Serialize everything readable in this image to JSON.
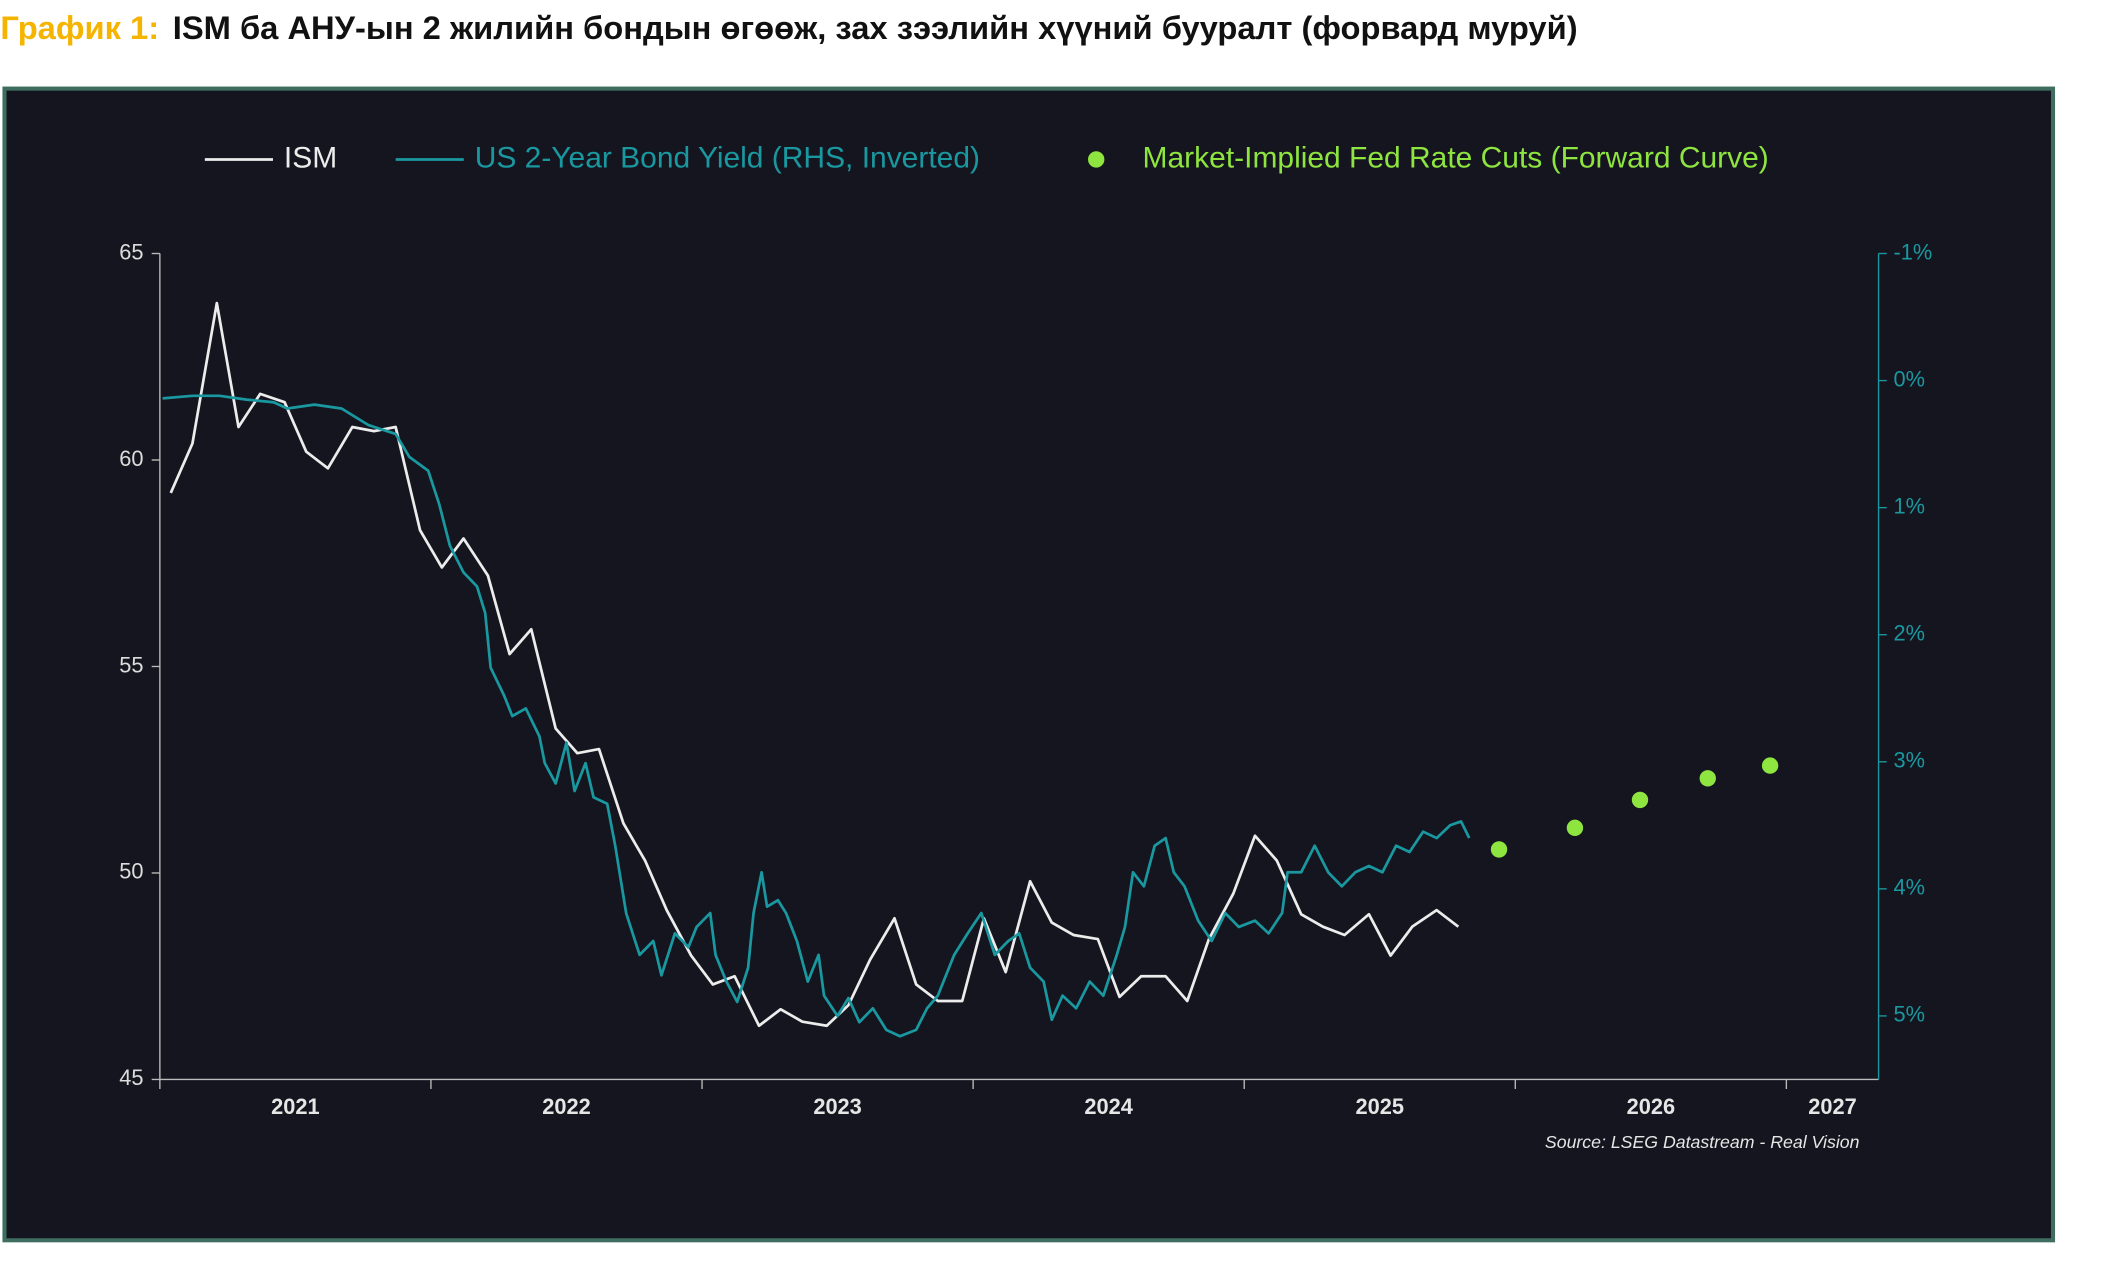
{
  "chart_data": {
    "type": "line",
    "figure_label": "График 1:",
    "title": "ISM ба АНУ-ын 2 жилийн бондын өгөөж, зах зээлийн хүүний бууралт (форвард муруй)",
    "source": "Source: LSEG Datastream - Real Vision",
    "xlim": [
      2021,
      2027.34
    ],
    "xticks": [
      2021,
      2022,
      2023,
      2024,
      2025,
      2026,
      2027
    ],
    "ylim": [
      45,
      65
    ],
    "yticks": [
      45,
      50,
      55,
      60,
      65
    ],
    "y2lim": [
      -1,
      5.5
    ],
    "y2_inverted": true,
    "y2ticks": [
      {
        "value": -1,
        "label": "-1%"
      },
      {
        "value": 0,
        "label": "0%"
      },
      {
        "value": 1,
        "label": "1%"
      },
      {
        "value": 2,
        "label": "2%"
      },
      {
        "value": 3,
        "label": "3%"
      },
      {
        "value": 4,
        "label": "4%"
      },
      {
        "value": 5,
        "label": "5%"
      }
    ],
    "series": [
      {
        "name": "ISM",
        "color": "#ececec",
        "axis": "y",
        "x": [
          2021.04,
          2021.12,
          2021.21,
          2021.29,
          2021.37,
          2021.46,
          2021.54,
          2021.62,
          2021.71,
          2021.79,
          2021.87,
          2021.96,
          2022.04,
          2022.12,
          2022.21,
          2022.29,
          2022.37,
          2022.46,
          2022.54,
          2022.62,
          2022.71,
          2022.79,
          2022.87,
          2022.96,
          2023.04,
          2023.12,
          2023.21,
          2023.29,
          2023.37,
          2023.46,
          2023.54,
          2023.62,
          2023.71,
          2023.79,
          2023.87,
          2023.96,
          2024.04,
          2024.12,
          2024.21,
          2024.29,
          2024.37,
          2024.46,
          2024.54,
          2024.62,
          2024.71,
          2024.79,
          2024.87,
          2024.96,
          2025.04,
          2025.12,
          2025.21,
          2025.29,
          2025.37,
          2025.46,
          2025.54,
          2025.62,
          2025.71,
          2025.79
        ],
        "values": [
          59.2,
          60.4,
          63.8,
          60.8,
          61.6,
          61.4,
          60.2,
          59.8,
          60.8,
          60.7,
          60.8,
          58.3,
          57.4,
          58.1,
          57.2,
          55.3,
          55.9,
          53.5,
          52.9,
          53.0,
          51.2,
          50.3,
          49.1,
          48.0,
          47.3,
          47.5,
          46.3,
          46.7,
          46.4,
          46.3,
          46.8,
          47.9,
          48.9,
          47.3,
          46.9,
          46.9,
          48.9,
          47.6,
          49.8,
          48.8,
          48.5,
          48.4,
          47.0,
          47.5,
          47.5,
          46.9,
          48.4,
          49.5,
          50.9,
          50.3,
          49.0,
          48.7,
          48.5,
          49.0,
          48.0,
          48.7,
          49.1,
          48.7
        ]
      },
      {
        "name": "US 2-Year Bond Yield (RHS, Inverted)",
        "color": "#1a98a0",
        "axis": "y2",
        "x": [
          2021.01,
          2021.12,
          2021.22,
          2021.32,
          2021.42,
          2021.47,
          2021.57,
          2021.67,
          2021.77,
          2021.87,
          2021.92,
          2021.99,
          2022.03,
          2022.07,
          2022.12,
          2022.17,
          2022.2,
          2022.22,
          2022.27,
          2022.3,
          2022.35,
          2022.4,
          2022.42,
          2022.46,
          2022.5,
          2022.53,
          2022.57,
          2022.6,
          2022.65,
          2022.68,
          2022.72,
          2022.77,
          2022.82,
          2022.85,
          2022.9,
          2022.95,
          2022.98,
          2023.03,
          2023.05,
          2023.09,
          2023.13,
          2023.17,
          2023.19,
          2023.22,
          2023.24,
          2023.28,
          2023.31,
          2023.35,
          2023.39,
          2023.43,
          2023.45,
          2023.5,
          2023.54,
          2023.58,
          2023.63,
          2023.68,
          2023.73,
          2023.79,
          2023.83,
          2023.87,
          2023.93,
          2023.98,
          2024.03,
          2024.08,
          2024.13,
          2024.17,
          2024.21,
          2024.26,
          2024.29,
          2024.33,
          2024.38,
          2024.43,
          2024.48,
          2024.53,
          2024.56,
          2024.59,
          2024.63,
          2024.67,
          2024.71,
          2024.74,
          2024.78,
          2024.83,
          2024.88,
          2024.93,
          2024.98,
          2025.04,
          2025.09,
          2025.14,
          2025.16,
          2025.21,
          2025.26,
          2025.31,
          2025.36,
          2025.41,
          2025.46,
          2025.51,
          2025.56,
          2025.61,
          2025.66,
          2025.71,
          2025.76,
          2025.8,
          2025.83
        ],
        "values": [
          0.14,
          0.12,
          0.12,
          0.15,
          0.17,
          0.22,
          0.19,
          0.22,
          0.35,
          0.42,
          0.6,
          0.71,
          0.97,
          1.3,
          1.51,
          1.62,
          1.83,
          2.26,
          2.48,
          2.64,
          2.58,
          2.8,
          3.01,
          3.17,
          2.85,
          3.23,
          3.01,
          3.28,
          3.33,
          3.66,
          4.19,
          4.52,
          4.41,
          4.68,
          4.35,
          4.46,
          4.3,
          4.19,
          4.52,
          4.73,
          4.89,
          4.62,
          4.19,
          3.87,
          4.14,
          4.09,
          4.19,
          4.41,
          4.73,
          4.52,
          4.84,
          5.0,
          4.86,
          5.05,
          4.94,
          5.11,
          5.16,
          5.11,
          4.94,
          4.84,
          4.52,
          4.35,
          4.19,
          4.52,
          4.41,
          4.35,
          4.62,
          4.73,
          5.03,
          4.84,
          4.94,
          4.73,
          4.84,
          4.52,
          4.3,
          3.87,
          3.98,
          3.66,
          3.6,
          3.87,
          3.98,
          4.25,
          4.41,
          4.19,
          4.3,
          4.25,
          4.35,
          4.19,
          3.87,
          3.87,
          3.66,
          3.87,
          3.98,
          3.87,
          3.82,
          3.87,
          3.66,
          3.71,
          3.55,
          3.6,
          3.5,
          3.47,
          3.6
        ]
      },
      {
        "name": "Market-Implied Fed Rate Cuts (Forward Curve)",
        "color": "#8ee53f",
        "axis": "y2",
        "marker": "dot",
        "x": [
          2025.94,
          2026.22,
          2026.46,
          2026.71,
          2026.94
        ],
        "values": [
          3.69,
          3.52,
          3.3,
          3.13,
          3.03
        ]
      }
    ]
  }
}
